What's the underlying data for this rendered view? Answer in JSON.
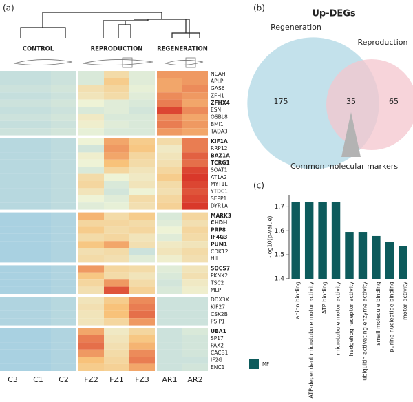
{
  "chart_data": [
    {
      "type": "heatmap",
      "panel": "(a)",
      "column_groups": [
        {
          "label": "CONTROL",
          "size": 3
        },
        {
          "label": "REPRODUCTION",
          "size": 3
        },
        {
          "label": "REGENERATION",
          "size": 2
        }
      ],
      "columns": [
        "C3",
        "C1",
        "C2",
        "FZ2",
        "FZ1",
        "FZ3",
        "AR1",
        "AR2"
      ],
      "zlim": [
        -1,
        2
      ],
      "colors": [
        "#a9d1e1",
        "#eef3d6",
        "#f8c27a",
        "#d9382a"
      ],
      "groups": [
        {
          "rows": [
            {
              "gene": "NCAH",
              "bold": false,
              "values": [
                -0.6,
                -0.6,
                -0.5,
                -0.3,
                0.5,
                -0.2,
                1.3,
                1.3
              ]
            },
            {
              "gene": "APLP",
              "bold": false,
              "values": [
                -0.6,
                -0.6,
                -0.5,
                -0.3,
                0.8,
                -0.2,
                1.2,
                1.3
              ]
            },
            {
              "gene": "GAS6",
              "bold": false,
              "values": [
                -0.5,
                -0.5,
                -0.4,
                0.4,
                0.6,
                -0.1,
                1.2,
                1.4
              ]
            },
            {
              "gene": "ZFH1",
              "bold": false,
              "values": [
                -0.6,
                -0.6,
                -0.5,
                0.3,
                0.5,
                -0.2,
                1.4,
                1.3
              ]
            },
            {
              "gene": "ZFHX4",
              "bold": true,
              "values": [
                -0.5,
                -0.5,
                -0.4,
                0.0,
                -0.2,
                -0.3,
                1.5,
                1.2
              ]
            },
            {
              "gene": "ESN",
              "bold": false,
              "values": [
                -0.6,
                -0.6,
                -0.5,
                -0.3,
                -0.2,
                -0.4,
                1.9,
                1.4
              ]
            },
            {
              "gene": "OSBL8",
              "bold": false,
              "values": [
                -0.5,
                -0.5,
                -0.4,
                0.2,
                -0.3,
                -0.3,
                1.4,
                1.2
              ]
            },
            {
              "gene": "BMI1",
              "bold": false,
              "values": [
                -0.6,
                -0.6,
                -0.5,
                0.1,
                -0.2,
                -0.3,
                1.5,
                1.3
              ]
            },
            {
              "gene": "TADA3",
              "bold": false,
              "values": [
                -0.5,
                -0.5,
                -0.4,
                -0.1,
                -0.3,
                -0.3,
                1.3,
                1.2
              ]
            }
          ]
        },
        {
          "rows": [
            {
              "gene": "KIF1A",
              "bold": true,
              "values": [
                -0.8,
                -0.8,
                -0.7,
                0.0,
                1.2,
                0.8,
                0.5,
                1.5
              ]
            },
            {
              "gene": "RRP12",
              "bold": false,
              "values": [
                -0.8,
                -0.8,
                -0.7,
                -0.4,
                1.3,
                0.9,
                0.2,
                1.5
              ]
            },
            {
              "gene": "BAZ1A",
              "bold": true,
              "values": [
                -0.8,
                -0.8,
                -0.7,
                0.1,
                1.2,
                0.6,
                0.3,
                1.7
              ]
            },
            {
              "gene": "TCRG1",
              "bold": true,
              "values": [
                -0.8,
                -0.8,
                -0.7,
                0.0,
                1.0,
                0.5,
                0.4,
                1.6
              ]
            },
            {
              "gene": "SOAT1",
              "bold": false,
              "values": [
                -0.8,
                -0.8,
                -0.7,
                -0.3,
                0.6,
                0.3,
                0.6,
                1.9
              ]
            },
            {
              "gene": "AT1A2",
              "bold": false,
              "values": [
                -0.8,
                -0.8,
                -0.7,
                0.5,
                0.0,
                0.2,
                0.8,
                2.0
              ]
            },
            {
              "gene": "MYT1L",
              "bold": false,
              "values": [
                -0.8,
                -0.8,
                -0.7,
                0.6,
                -0.3,
                0.3,
                0.5,
                1.9
              ]
            },
            {
              "gene": "YTDC1",
              "bold": false,
              "values": [
                -0.8,
                -0.8,
                -0.7,
                0.3,
                -0.4,
                0.0,
                0.4,
                1.8
              ]
            },
            {
              "gene": "SEPP1",
              "bold": false,
              "values": [
                -0.8,
                -0.8,
                -0.7,
                0.0,
                -0.2,
                0.5,
                0.6,
                1.9
              ]
            },
            {
              "gene": "DYR1A",
              "bold": false,
              "values": [
                -0.8,
                -0.8,
                -0.7,
                -0.2,
                -0.1,
                0.4,
                0.7,
                2.0
              ]
            }
          ]
        },
        {
          "rows": [
            {
              "gene": "MARK3",
              "bold": true,
              "values": [
                -1.0,
                -1.0,
                -0.9,
                1.1,
                0.5,
                0.8,
                -0.3,
                0.6
              ]
            },
            {
              "gene": "CHDH",
              "bold": true,
              "values": [
                -1.0,
                -1.0,
                -0.9,
                0.6,
                0.6,
                0.5,
                -0.2,
                0.4
              ]
            },
            {
              "gene": "PRP8",
              "bold": true,
              "values": [
                -1.0,
                -1.0,
                -0.9,
                0.8,
                0.5,
                0.6,
                0.0,
                0.6
              ]
            },
            {
              "gene": "IF4G3",
              "bold": true,
              "values": [
                -1.0,
                -1.0,
                -0.9,
                0.5,
                0.6,
                0.3,
                -0.2,
                0.5
              ]
            },
            {
              "gene": "PUM1",
              "bold": true,
              "values": [
                -1.0,
                -1.0,
                -0.9,
                0.9,
                1.2,
                0.4,
                0.2,
                0.3
              ]
            },
            {
              "gene": "CDK12",
              "bold": false,
              "values": [
                -1.0,
                -1.0,
                -0.9,
                0.4,
                0.5,
                -0.5,
                0.3,
                0.5
              ]
            },
            {
              "gene": "HIL",
              "bold": false,
              "values": [
                -1.0,
                -1.0,
                -0.9,
                0.5,
                0.4,
                -0.2,
                0.1,
                0.4
              ]
            }
          ]
        },
        {
          "rows": [
            {
              "gene": "SOCS7",
              "bold": true,
              "values": [
                -1.0,
                -1.0,
                -0.9,
                1.3,
                0.6,
                0.5,
                -0.2,
                0.3
              ]
            },
            {
              "gene": "PKNX2",
              "bold": false,
              "values": [
                -1.0,
                -1.0,
                -0.9,
                0.9,
                0.5,
                0.3,
                -0.3,
                0.4
              ]
            },
            {
              "gene": "TSC2",
              "bold": false,
              "values": [
                -1.0,
                -1.0,
                -0.9,
                0.6,
                1.3,
                0.5,
                -0.4,
                0.2
              ]
            },
            {
              "gene": "MLP",
              "bold": false,
              "values": [
                -1.0,
                -1.0,
                -0.9,
                0.4,
                1.8,
                0.7,
                -0.3,
                0.1
              ]
            }
          ]
        },
        {
          "rows": [
            {
              "gene": "DDX3X",
              "bold": false,
              "values": [
                -0.9,
                -0.9,
                -0.8,
                0.3,
                0.8,
                1.4,
                -0.5,
                -0.5
              ]
            },
            {
              "gene": "KIF27",
              "bold": false,
              "values": [
                -0.9,
                -0.9,
                -0.8,
                0.4,
                1.0,
                1.5,
                -0.5,
                -0.5
              ]
            },
            {
              "gene": "CSK2B",
              "bold": false,
              "values": [
                -0.9,
                -0.9,
                -0.8,
                0.3,
                1.0,
                1.6,
                -0.5,
                -0.5
              ]
            },
            {
              "gene": "PSIP1",
              "bold": false,
              "values": [
                -0.9,
                -0.9,
                -0.8,
                0.3,
                0.6,
                1.3,
                -0.5,
                -0.5
              ]
            }
          ]
        },
        {
          "rows": [
            {
              "gene": "UBA1",
              "bold": true,
              "values": [
                -1.0,
                -1.0,
                -0.9,
                1.2,
                0.2,
                0.6,
                -0.5,
                -0.3
              ]
            },
            {
              "gene": "SP17",
              "bold": false,
              "values": [
                -1.0,
                -1.0,
                -0.9,
                1.5,
                0.3,
                0.9,
                -0.5,
                -0.4
              ]
            },
            {
              "gene": "PAX2",
              "bold": false,
              "values": [
                -1.0,
                -1.0,
                -0.9,
                1.6,
                0.4,
                1.1,
                -0.5,
                -0.4
              ]
            },
            {
              "gene": "CACB1",
              "bold": false,
              "values": [
                -1.0,
                -1.0,
                -0.9,
                1.3,
                0.5,
                1.4,
                -0.5,
                -0.4
              ]
            },
            {
              "gene": "IF2G",
              "bold": false,
              "values": [
                -1.0,
                -1.0,
                -0.9,
                1.0,
                0.6,
                1.5,
                -0.5,
                -0.5
              ]
            },
            {
              "gene": "ENC1",
              "bold": false,
              "values": [
                -1.0,
                -1.0,
                -0.9,
                0.8,
                0.7,
                1.2,
                -0.5,
                -0.4
              ]
            }
          ]
        }
      ]
    },
    {
      "type": "venn",
      "panel": "(b)",
      "title": "Up-DEGs",
      "sets": [
        {
          "name": "Regeneration",
          "color": "#b9dce7"
        },
        {
          "name": "Reproduction",
          "color": "#f4c6ce"
        }
      ],
      "only_a": 175,
      "both": 35,
      "only_b": 65,
      "annotation": "Common molecular markers"
    },
    {
      "type": "bar",
      "panel": "(c)",
      "ylabel": "-log10(p-value)",
      "categories": [
        "anion binding",
        "ATP-dependent microtubule motor activity",
        "ATP binding",
        "microtubule motor activity",
        "hedgehog receptor activity",
        "ubiquitin activating enzyme activity",
        "small molecule binding",
        "purine nucleotide binding",
        "motor activity"
      ],
      "series": [
        {
          "name": "MF",
          "color": "#0d5b5c",
          "values": [
            1.72,
            1.72,
            1.72,
            1.72,
            1.595,
            1.595,
            1.578,
            1.553,
            1.535
          ]
        }
      ],
      "ylim": [
        1.4,
        1.75
      ],
      "yticks": [
        1.4,
        1.5,
        1.6,
        1.7
      ]
    }
  ]
}
